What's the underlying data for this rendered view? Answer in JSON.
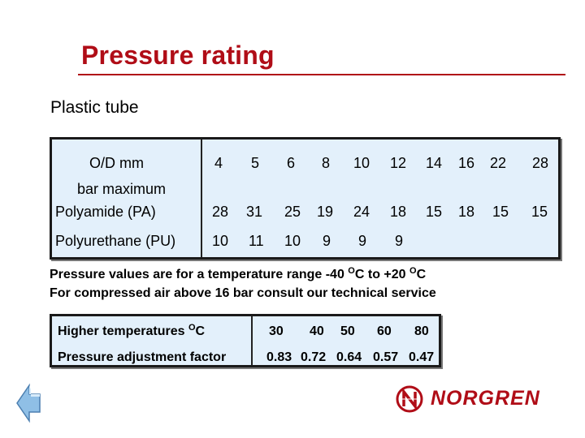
{
  "title": "Pressure rating",
  "subtitle": "Plastic tube",
  "pressure_table": {
    "od_label": "O/D mm",
    "bar_label": "bar maximum",
    "od_values": [
      "4",
      "5",
      "6",
      "8",
      "10",
      "12",
      "14",
      "16",
      "22",
      "28"
    ],
    "rows": [
      {
        "label": "Polyamide (PA)",
        "values": [
          "28",
          "31",
          "25",
          "19",
          "24",
          "18",
          "15",
          "18",
          "15",
          "15"
        ]
      },
      {
        "label": "Polyurethane (PU)",
        "values": [
          "10",
          "11",
          "10",
          "9",
          "9",
          "9"
        ]
      }
    ]
  },
  "notes": {
    "line1_a": "Pressure values are for a temperature range -40 ",
    "line1_sup1": "O",
    "line1_b": "C to +20 ",
    "line1_sup2": "O",
    "line1_c": "C",
    "line2": "For compressed air above 16 bar consult our technical service"
  },
  "temperature_table": {
    "temp_label": "Higher temperatures ",
    "temp_sup": "O",
    "temp_unit": "C",
    "temps": [
      "30",
      "40",
      "50",
      "60",
      "80"
    ],
    "factor_label": "Pressure adjustment factor",
    "factors": [
      "0.83",
      "0.72",
      "0.64",
      "0.57",
      "0.47"
    ]
  },
  "brand": {
    "name": "NORGREN",
    "color": "#b00d17"
  },
  "nav": {
    "back_icon": "back-arrow-icon"
  }
}
